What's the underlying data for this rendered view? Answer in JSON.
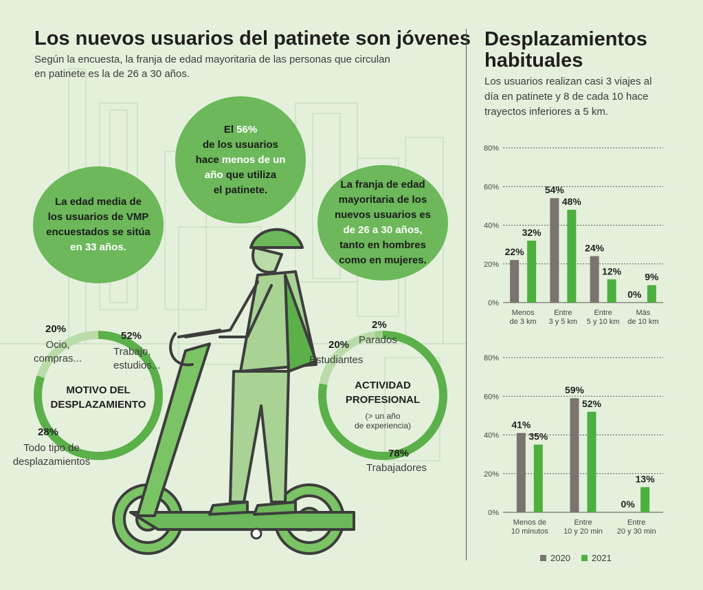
{
  "left": {
    "title": "Los nuevos usuarios del patinete son jóvenes",
    "subtitle_line1": "Según la encuesta, la franja de edad mayoritaria de las personas que circulan",
    "subtitle_line2": "en patinete es la de 26 a 30 años.",
    "bubble_age": {
      "l1": "La edad media de",
      "l2": "los usuarios de VMP",
      "l3": "encuestados se sitúa",
      "l4": "en 33 años."
    },
    "bubble_users": {
      "l1a": "El ",
      "l1b": "56%",
      "l2": "de los usuarios",
      "l3a": "hace ",
      "l3b": "menos de un",
      "l4a": "año",
      "l4b": " que utiliza",
      "l5": "el patinete."
    },
    "bubble_range": {
      "l1": "La franja de edad",
      "l2": "mayoritaria de los",
      "l3": "nuevos usuarios es",
      "l4": "de 26 a 30 años,",
      "l5": "tanto en hombres",
      "l6": "como en mujeres."
    },
    "motivo": {
      "title_l1": "MOTIVO DEL",
      "title_l2": "DESPLAZAMIENTO",
      "items": [
        {
          "pct": "52%",
          "label_l1": "Trabajo,",
          "label_l2": "estudios...",
          "value": 52
        },
        {
          "pct": "28%",
          "label_l1": "Todo tipo de",
          "label_l2": "desplazamientos",
          "value": 28
        },
        {
          "pct": "20%",
          "label_l1": "Ocio,",
          "label_l2": "compras...",
          "value": 20
        }
      ]
    },
    "actividad": {
      "title_l1": "ACTIVIDAD",
      "title_l2": "PROFESIONAL",
      "note_l1": "(> un año",
      "note_l2": "de experiencia)",
      "items": [
        {
          "pct": "78%",
          "label": "Trabajadores",
          "value": 78
        },
        {
          "pct": "20%",
          "label": "Estudiantes",
          "value": 20
        },
        {
          "pct": "2%",
          "label": "Parados",
          "value": 2
        }
      ]
    }
  },
  "right": {
    "title_l1": "Desplazamientos",
    "title_l2": "habituales",
    "sub_l1": "Los usuarios realizan casi 3 viajes al",
    "sub_l2": "día en patinete y 8 de cada 10 hace",
    "sub_l3": "trayectos inferiores a 5 km.",
    "legend": [
      "2020",
      "2021"
    ]
  },
  "colors": {
    "y2020": "#7a7370",
    "y2021": "#4caf3e",
    "bubble": "#6cb85a",
    "ring_dark": "#5cb04a",
    "ring_light": "#b9dca8"
  },
  "chart_data": [
    {
      "type": "bar",
      "categories": [
        [
          "Menos",
          "de 3 km"
        ],
        [
          "Entre",
          "3 y 5 km"
        ],
        [
          "Entre",
          "5 y 10 km"
        ],
        [
          "Más",
          "de 10 km"
        ]
      ],
      "series": [
        {
          "name": "2020",
          "values": [
            22,
            54,
            24,
            0
          ],
          "labels": [
            "22%",
            "54%",
            "24%",
            "0%"
          ]
        },
        {
          "name": "2021",
          "values": [
            32,
            48,
            12,
            9
          ],
          "labels": [
            "32%",
            "48%",
            "12%",
            "9%"
          ]
        }
      ],
      "yticks": [
        "0%",
        "20%",
        "40%",
        "60%",
        "80%"
      ],
      "ylim": [
        0,
        80
      ]
    },
    {
      "type": "bar",
      "categories": [
        [
          "Menos de",
          "10 minutos"
        ],
        [
          "Entre",
          "10 y 20 min"
        ],
        [
          "Entre",
          "20 y 30 min"
        ]
      ],
      "series": [
        {
          "name": "2020",
          "values": [
            41,
            59,
            0
          ],
          "labels": [
            "41%",
            "59%",
            "0%"
          ]
        },
        {
          "name": "2021",
          "values": [
            35,
            52,
            13
          ],
          "labels": [
            "35%",
            "52%",
            "13%"
          ]
        }
      ],
      "yticks": [
        "0%",
        "20%",
        "40%",
        "60%",
        "80%"
      ],
      "ylim": [
        0,
        80
      ]
    }
  ]
}
